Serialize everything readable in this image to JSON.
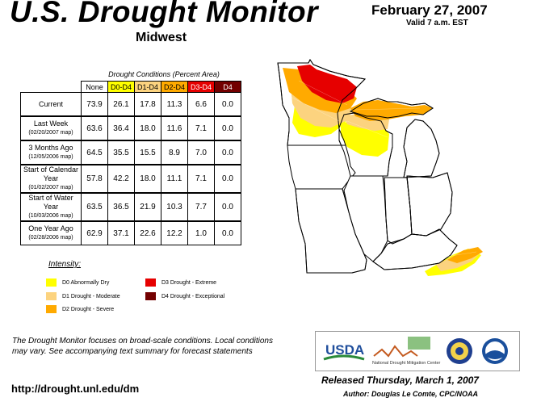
{
  "header": {
    "title": "U.S. Drought Monitor",
    "region": "Midwest",
    "date": "February 27, 2007",
    "valid": "Valid 7 a.m. EST"
  },
  "table": {
    "caption": "Drought Conditions (Percent Area)",
    "columns": [
      "None",
      "D0-D4",
      "D1-D4",
      "D2-D4",
      "D3-D4",
      "D4"
    ],
    "column_colors": [
      "#ffffff",
      "#ffff00",
      "#fcd37f",
      "#ffaa00",
      "#e60000",
      "#730000"
    ],
    "column_text_colors": [
      "#000000",
      "#000000",
      "#000000",
      "#000000",
      "#ffffff",
      "#ffffff"
    ],
    "rows": [
      {
        "label": "Current",
        "sub": "",
        "values": [
          "73.9",
          "26.1",
          "17.8",
          "11.3",
          "6.6",
          "0.0"
        ]
      },
      {
        "label": "Last Week",
        "sub": "(02/20/2007 map)",
        "values": [
          "63.6",
          "36.4",
          "18.0",
          "11.6",
          "7.1",
          "0.0"
        ]
      },
      {
        "label": "3 Months Ago",
        "sub": "(12/05/2006 map)",
        "values": [
          "64.5",
          "35.5",
          "15.5",
          "8.9",
          "7.0",
          "0.0"
        ]
      },
      {
        "label": "Start of Calendar Year",
        "sub": "(01/02/2007 map)",
        "values": [
          "57.8",
          "42.2",
          "18.0",
          "11.1",
          "7.1",
          "0.0"
        ]
      },
      {
        "label": "Start of Water Year",
        "sub": "(10/03/2006 map)",
        "values": [
          "63.5",
          "36.5",
          "21.9",
          "10.3",
          "7.7",
          "0.0"
        ]
      },
      {
        "label": "One Year Ago",
        "sub": "(02/28/2006 map)",
        "values": [
          "62.9",
          "37.1",
          "22.6",
          "12.2",
          "1.0",
          "0.0"
        ]
      }
    ]
  },
  "legend": {
    "title": "Intensity:",
    "items": [
      {
        "label": "D0 Abnormally Dry",
        "color": "#ffff00"
      },
      {
        "label": "D1 Drought - Moderate",
        "color": "#fcd37f"
      },
      {
        "label": "D2 Drought - Severe",
        "color": "#ffaa00"
      },
      {
        "label": "D3 Drought - Extreme",
        "color": "#e60000"
      },
      {
        "label": "D4 Drought - Exceptional",
        "color": "#730000"
      }
    ]
  },
  "footer": {
    "note": "The Drought Monitor focuses on broad-scale conditions. Local conditions may vary. See accompanying text summary for forecast statements",
    "url": "http://drought.unl.edu/dm",
    "released": "Released Thursday, March 1, 2007",
    "author": "Author: Douglas Le Comte, CPC/NOAA"
  },
  "logos": {
    "usda": "USDA",
    "ndmc": "National Drought Mitigation Center"
  }
}
